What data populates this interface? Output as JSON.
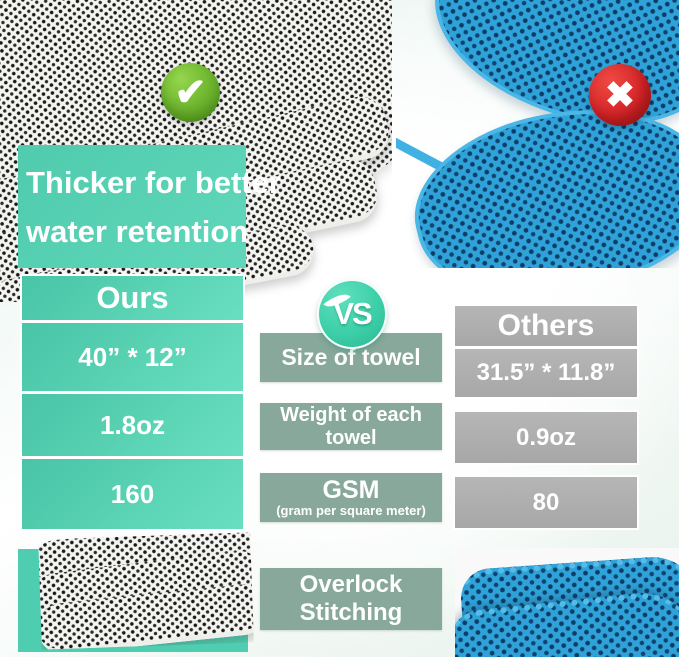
{
  "banner": {
    "line1": "Thicker for better",
    "line2": "water retention"
  },
  "badges": {
    "check": "✔",
    "cross": "✖"
  },
  "vs_label": "VS",
  "comparison": {
    "ours": {
      "header": "Ours",
      "values": [
        "40” * 12”",
        "1.8oz",
        "160"
      ]
    },
    "others": {
      "header": "Others",
      "values": [
        "31.5” * 11.8”",
        "0.9oz",
        "80"
      ]
    },
    "criteria": [
      {
        "line1": "Size of towel",
        "line2": ""
      },
      {
        "line1": "Weight of each towel",
        "line2": ""
      },
      {
        "line1": "GSM",
        "line2": "(gram per square meter)"
      },
      {
        "line1": "Overlock",
        "line2": "Stitching"
      }
    ]
  },
  "colors": {
    "teal": "#55cdb0",
    "sage_bar": "#87a89b",
    "gray": "#ababab",
    "check_green": "#6cb32d",
    "cross_red": "#d7262a",
    "towel_blue": "#2fa3d9"
  }
}
